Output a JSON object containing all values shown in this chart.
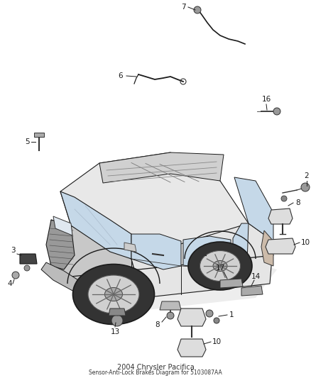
{
  "bg_color": "#ffffff",
  "fig_width": 4.38,
  "fig_height": 5.33,
  "dpi": 100,
  "line_color": "#1a1a1a",
  "text_color": "#1a1a1a",
  "font_size": 7.5,
  "car": {
    "body_color": "#f0f0f0",
    "body_edge": "#1a1a1a",
    "glass_color": "#d8e8f0",
    "wheel_outer": "#444444",
    "wheel_rim": "#cccccc",
    "wheel_inner": "#888888",
    "dark_accent": "#222222",
    "mid_gray": "#888888",
    "light_gray": "#bbbbbb"
  },
  "bottom_title": "2004 Chrysler Pacifica",
  "bottom_subtitle": "Sensor-Anti-Lock Brakes Diagram for 5103087AA"
}
